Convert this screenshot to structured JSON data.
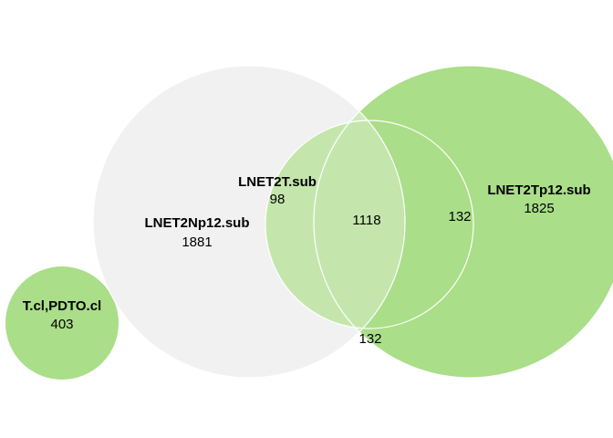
{
  "sets": [
    {
      "id": "lnet2np12",
      "name": "LNET2Np12.sub",
      "total": "1881",
      "fill": "#f1f1f1"
    },
    {
      "id": "lnet2tp12",
      "name": "LNET2Tp12.sub",
      "total": "1825",
      "fill": "#aade88"
    },
    {
      "id": "lnet2t",
      "name": "LNET2T.sub",
      "total": "98",
      "fill": "#aade88"
    },
    {
      "id": "tcl-pdtocl",
      "name": "T.cl,PDTO.cl",
      "total": "403",
      "fill": "#aade88"
    }
  ],
  "regions": {
    "center": "1118",
    "right_lens": "132",
    "bottom_lens": "132"
  },
  "colors": {
    "overlap_np_tp": "#cdebbb",
    "overlap_np_t": "#c4e6ad",
    "overlap_t_tp": "#aade88",
    "overlap_all": "#c4e6ad"
  }
}
